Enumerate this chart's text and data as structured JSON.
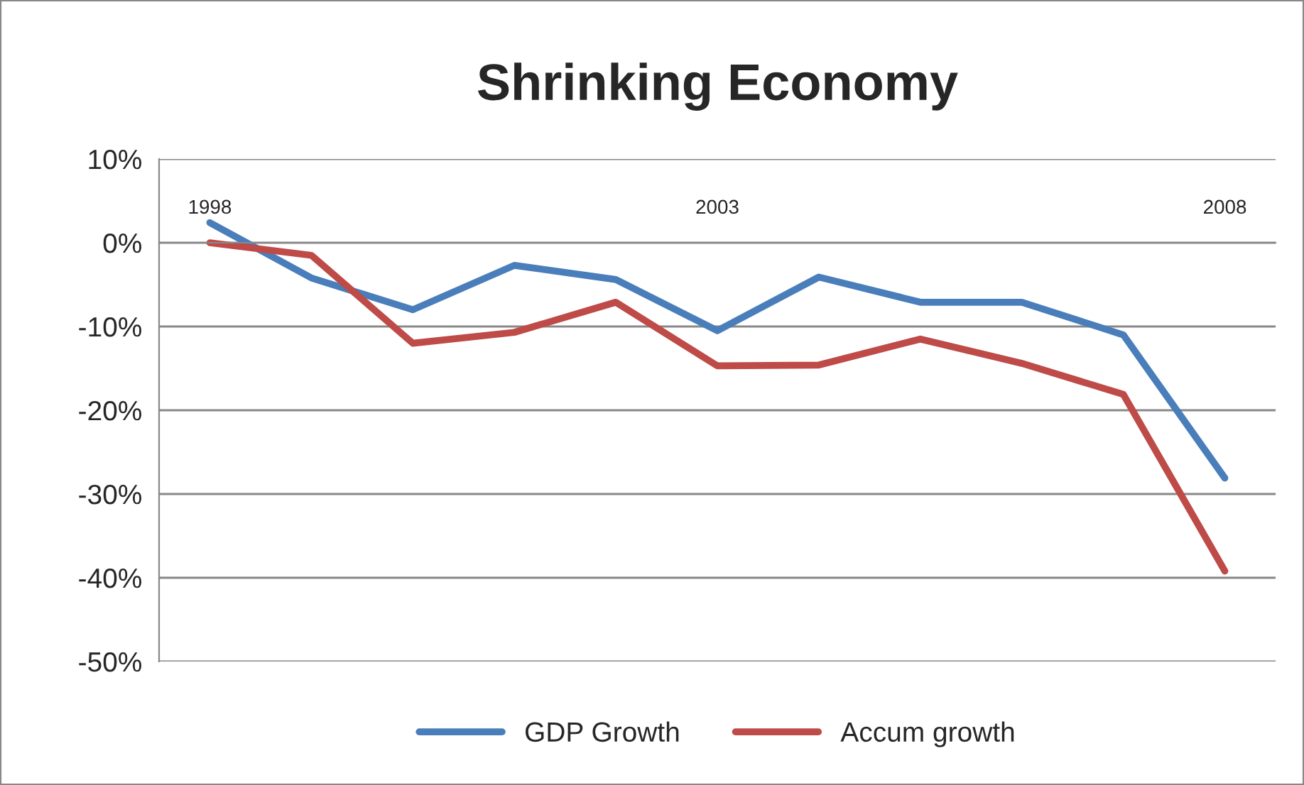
{
  "chart_data": {
    "type": "line",
    "title": "Shrinking Economy",
    "categories": [
      "1998",
      null,
      null,
      null,
      null,
      "2003",
      null,
      null,
      null,
      null,
      "2008"
    ],
    "series": [
      {
        "name": "GDP Growth",
        "color": "#4a7ebb",
        "values": [
          2.4,
          -4.2,
          -8.0,
          -2.7,
          -4.4,
          -10.5,
          -4.1,
          -7.1,
          -7.1,
          -11.0,
          -28.1
        ]
      },
      {
        "name": "Accum growth",
        "color": "#be4b48",
        "values": [
          0,
          -1.5,
          -12.0,
          -10.7,
          -7.1,
          -14.7,
          -14.6,
          -11.5,
          -14.4,
          -18.1,
          -39.2
        ]
      }
    ],
    "ylim": [
      -50,
      10
    ],
    "yticks": [
      {
        "value": 10,
        "label": "10%"
      },
      {
        "value": 0,
        "label": "0%"
      },
      {
        "value": -10,
        "label": "-10%"
      },
      {
        "value": -20,
        "label": "-20%"
      },
      {
        "value": -30,
        "label": "-30%"
      },
      {
        "value": -40,
        "label": "-40%"
      },
      {
        "value": -50,
        "label": "-50%"
      }
    ],
    "grid": "y",
    "legend": "bottom",
    "marker": "none",
    "line_style": "solid"
  }
}
